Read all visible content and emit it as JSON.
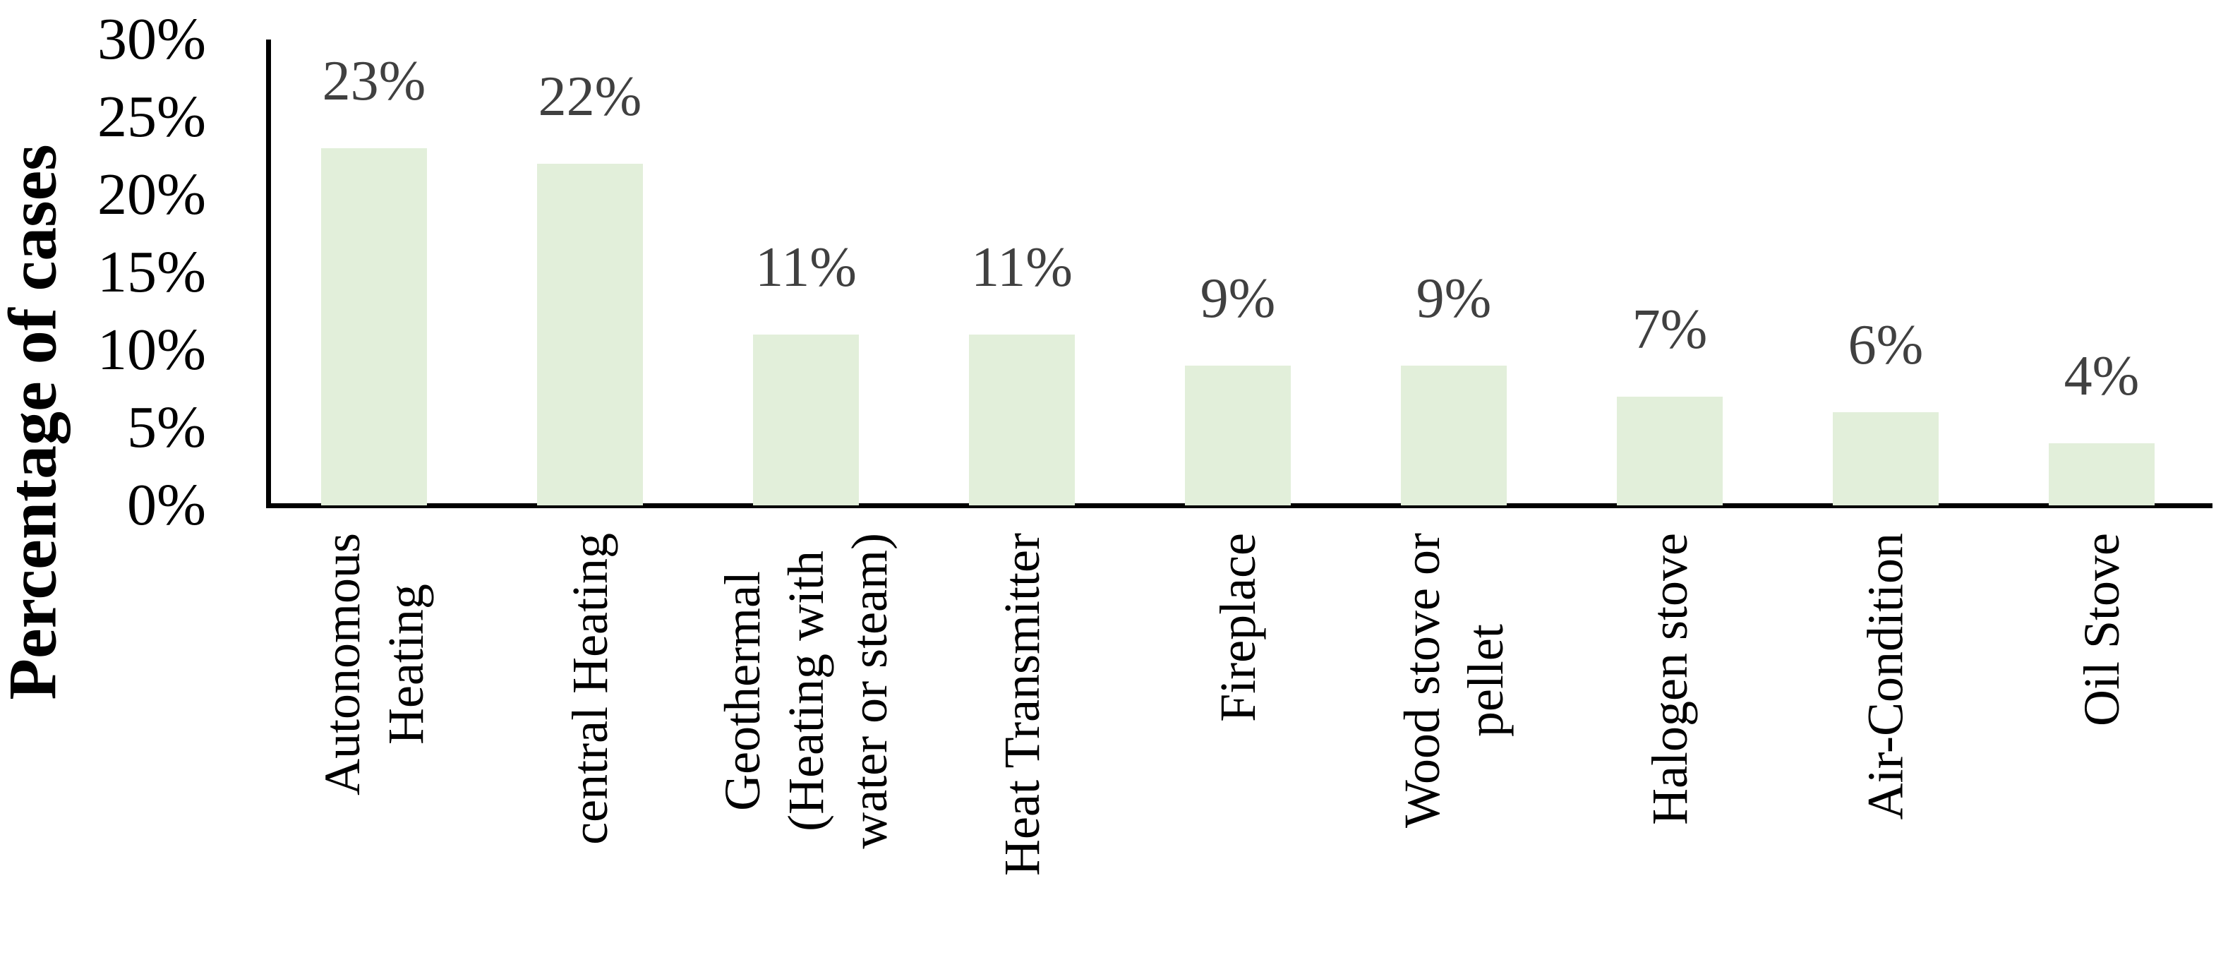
{
  "chart_data": {
    "type": "bar",
    "title": "",
    "xlabel": "",
    "ylabel": "Percentage of cases",
    "categories": [
      "Autonomous\nHeating",
      "central Heating",
      "Geothermal\n(Heating with\nwater or steam)",
      "Heat Transmitter",
      "Fireplace",
      "Wood stove or\npellet",
      "Halogen stove",
      "Air-Condition",
      "Oil Stove"
    ],
    "values": [
      23,
      22,
      11,
      11,
      9,
      9,
      7,
      6,
      4
    ],
    "data_labels": [
      "23%",
      "22%",
      "11%",
      "11%",
      "9%",
      "9%",
      "7%",
      "6%",
      "4%"
    ],
    "y_ticks": [
      "30%",
      "25%",
      "20%",
      "15%",
      "10%",
      "5%",
      "0%"
    ],
    "y_tick_values": [
      30,
      25,
      20,
      15,
      10,
      5,
      0
    ],
    "ylim": [
      0,
      30
    ],
    "grid": false,
    "legend": false,
    "bar_color": "#e2efda",
    "data_label_color": "#404040",
    "axis_color": "#000000"
  }
}
